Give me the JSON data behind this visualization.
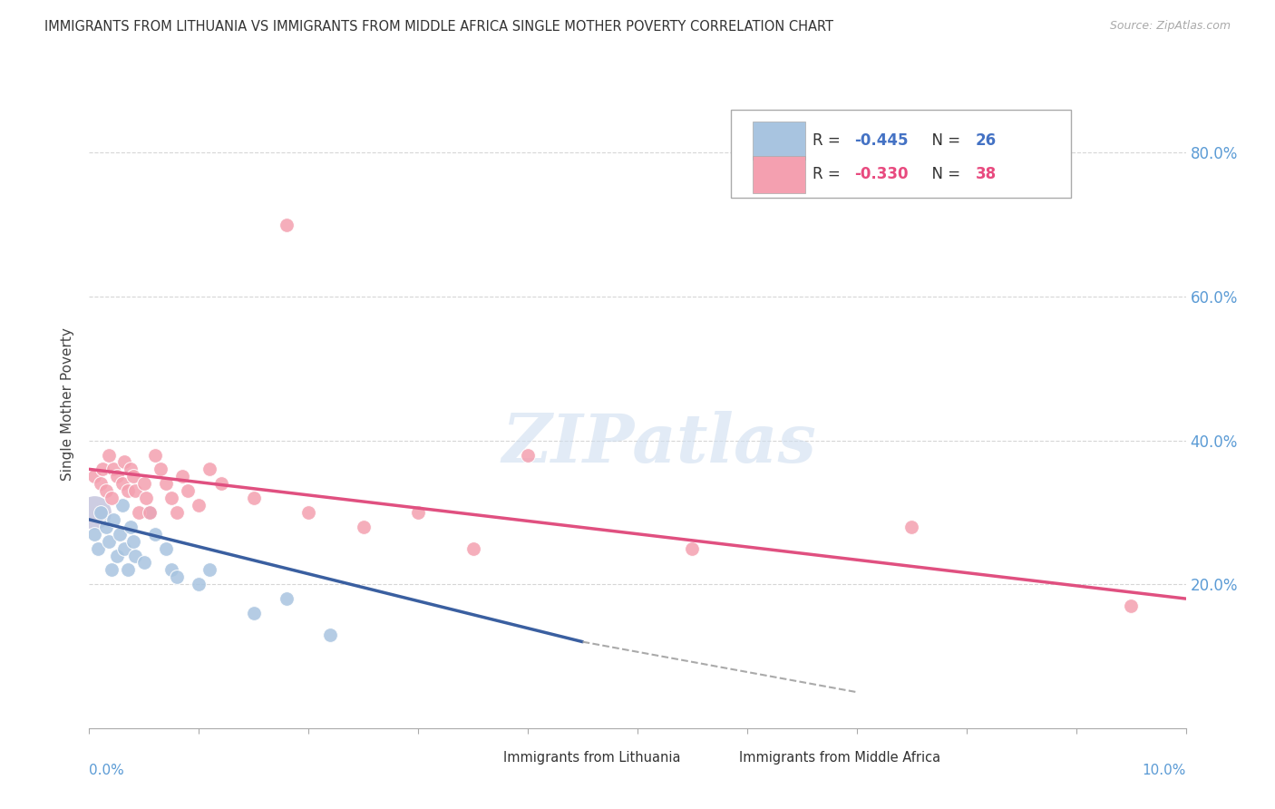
{
  "title": "IMMIGRANTS FROM LITHUANIA VS IMMIGRANTS FROM MIDDLE AFRICA SINGLE MOTHER POVERTY CORRELATION CHART",
  "source": "Source: ZipAtlas.com",
  "ylabel": "Single Mother Poverty",
  "xmin": 0.0,
  "xmax": 10.0,
  "ymin": 0.0,
  "ymax": 90.0,
  "yticks": [
    20,
    40,
    60,
    80
  ],
  "ytick_labels": [
    "20.0%",
    "40.0%",
    "60.0%",
    "80.0%"
  ],
  "grid_color": "#cccccc",
  "background_color": "#ffffff",
  "lith_color": "#a8c4e0",
  "lith_line_color": "#3a5fa0",
  "midaf_color": "#f4a0b0",
  "midaf_line_color": "#e05080",
  "lith_scatter_x": [
    0.05,
    0.08,
    0.1,
    0.15,
    0.18,
    0.2,
    0.22,
    0.25,
    0.28,
    0.3,
    0.32,
    0.35,
    0.38,
    0.4,
    0.42,
    0.5,
    0.55,
    0.6,
    0.7,
    0.75,
    0.8,
    1.0,
    1.1,
    1.5,
    1.8,
    2.2
  ],
  "lith_scatter_y": [
    27,
    25,
    30,
    28,
    26,
    22,
    29,
    24,
    27,
    31,
    25,
    22,
    28,
    26,
    24,
    23,
    30,
    27,
    25,
    22,
    21,
    20,
    22,
    16,
    18,
    13
  ],
  "midaf_scatter_x": [
    0.05,
    0.1,
    0.12,
    0.15,
    0.18,
    0.2,
    0.22,
    0.25,
    0.3,
    0.32,
    0.35,
    0.38,
    0.4,
    0.42,
    0.45,
    0.5,
    0.52,
    0.55,
    0.6,
    0.65,
    0.7,
    0.75,
    0.8,
    0.85,
    0.9,
    1.0,
    1.1,
    1.2,
    1.5,
    1.8,
    2.0,
    2.5,
    3.0,
    3.5,
    4.0,
    5.5,
    7.5,
    9.5
  ],
  "midaf_scatter_y": [
    35,
    34,
    36,
    33,
    38,
    32,
    36,
    35,
    34,
    37,
    33,
    36,
    35,
    33,
    30,
    34,
    32,
    30,
    38,
    36,
    34,
    32,
    30,
    35,
    33,
    31,
    36,
    34,
    32,
    70,
    30,
    28,
    30,
    25,
    38,
    25,
    28,
    17
  ],
  "lith_reg_x0": 0.0,
  "lith_reg_y0": 29.0,
  "lith_reg_x1": 4.5,
  "lith_reg_y1": 12.0,
  "midaf_reg_x0": 0.0,
  "midaf_reg_y0": 36.0,
  "midaf_reg_x1": 10.0,
  "midaf_reg_y1": 18.0,
  "dashed_x0": 4.5,
  "dashed_y0": 12.0,
  "dashed_x1": 7.0,
  "dashed_y1": 5.0,
  "large_dot_x": 0.05,
  "large_dot_y": 30,
  "large_dot_color": "#9090c0",
  "legend_R_lith": "-0.445",
  "legend_N_lith": "26",
  "legend_R_midaf": "-0.330",
  "legend_N_midaf": "38"
}
